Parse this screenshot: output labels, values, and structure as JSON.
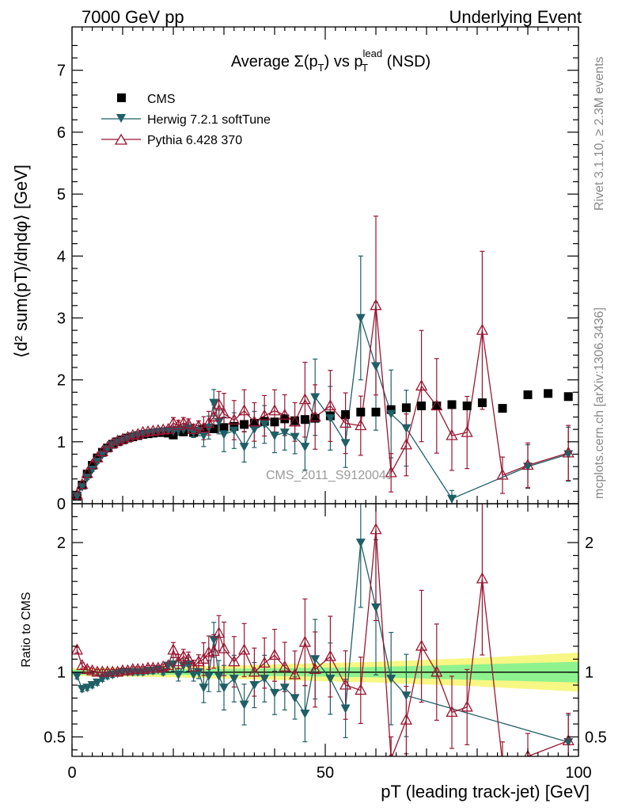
{
  "header": {
    "left": "7000 GeV pp",
    "right": "Underlying Event"
  },
  "plot_title": {
    "part1": "Average ",
    "sigma": "Σ(p",
    "sub_t": "T",
    "part2": ") vs p",
    "sup_lead": "lead",
    "sub_t2": "T",
    "part3": " (NSD)"
  },
  "side_labels": {
    "rivet": "Rivet 3.1.10, ≥ 2.3M events",
    "mcplots": "mcplots.cern.ch [arXiv:1306.3436]"
  },
  "watermark": "CMS_2011_S9120041",
  "colors": {
    "cms": "#000000",
    "herwig": "#1f5f66",
    "pythia": "#9b1530",
    "band_inner": "#8ef28e",
    "band_outer": "#f7f784"
  },
  "chart_data": [
    {
      "type": "scatter",
      "panel": "main",
      "ylabel": "⟨d² sum(pT)/dηdφ⟩ [GeV]",
      "xlim": [
        0,
        100
      ],
      "ylim": [
        0,
        7.7
      ],
      "yticks": [
        0,
        1,
        2,
        3,
        4,
        5,
        6,
        7
      ],
      "legend_position": "top-left",
      "legend": [
        "CMS",
        "Herwig 7.2.1 softTune",
        "Pythia 6.428 370"
      ],
      "series": [
        {
          "name": "CMS",
          "marker": "square",
          "x": [
            1,
            2,
            3,
            4,
            5,
            6,
            7,
            8,
            9,
            10,
            11,
            12,
            13,
            14,
            15,
            16,
            17,
            18,
            19,
            20,
            22,
            24,
            26,
            28,
            30,
            32,
            34,
            36,
            38,
            40,
            42,
            44,
            46,
            48,
            51,
            54,
            57,
            60,
            63,
            66,
            69,
            72,
            75,
            78,
            81,
            85,
            90,
            94,
            98
          ],
          "y": [
            0.12,
            0.3,
            0.48,
            0.62,
            0.74,
            0.83,
            0.9,
            0.96,
            1.0,
            1.03,
            1.06,
            1.08,
            1.1,
            1.12,
            1.13,
            1.14,
            1.15,
            1.15,
            1.14,
            1.11,
            1.16,
            1.15,
            1.2,
            1.21,
            1.23,
            1.25,
            1.28,
            1.3,
            1.33,
            1.32,
            1.37,
            1.34,
            1.36,
            1.38,
            1.42,
            1.44,
            1.48,
            1.48,
            1.52,
            1.55,
            1.58,
            1.58,
            1.6,
            1.58,
            1.63,
            1.54,
            1.76,
            1.78,
            1.73
          ]
        },
        {
          "name": "Herwig 7.2.1 softTune",
          "marker": "triangle-down",
          "x": [
            1,
            2,
            3,
            4,
            5,
            6,
            7,
            8,
            9,
            10,
            11,
            12,
            13,
            14,
            15,
            16,
            17,
            18,
            19,
            20,
            21,
            22,
            23,
            24,
            25,
            26,
            27,
            28,
            29,
            30,
            32,
            34,
            36,
            38,
            40,
            42,
            44,
            46,
            48,
            51,
            54,
            57,
            60,
            63,
            66,
            75,
            90,
            98
          ],
          "y": [
            0.12,
            0.27,
            0.42,
            0.55,
            0.68,
            0.79,
            0.88,
            0.95,
            0.99,
            1.02,
            1.05,
            1.08,
            1.1,
            1.12,
            1.14,
            1.15,
            1.16,
            1.17,
            1.18,
            1.17,
            1.19,
            1.2,
            1.22,
            1.15,
            1.18,
            1.1,
            1.23,
            1.63,
            1.32,
            1.12,
            1.18,
            0.92,
            1.2,
            1.28,
            1.1,
            1.15,
            1.08,
            0.92,
            1.72,
            1.38,
            0.98,
            3.0,
            2.22,
            1.45,
            1.22,
            0.08,
            0.6,
            0.8
          ]
        },
        {
          "name": "Pythia 6.428 370",
          "marker": "triangle-up-open",
          "x": [
            1,
            2,
            3,
            4,
            5,
            6,
            7,
            8,
            9,
            10,
            11,
            12,
            13,
            14,
            15,
            16,
            17,
            18,
            19,
            20,
            21,
            22,
            23,
            24,
            25,
            26,
            27,
            28,
            29,
            30,
            32,
            34,
            36,
            38,
            40,
            42,
            44,
            46,
            48,
            51,
            54,
            57,
            60,
            63,
            66,
            69,
            72,
            75,
            78,
            81,
            85,
            90,
            98
          ],
          "y": [
            0.14,
            0.31,
            0.49,
            0.63,
            0.74,
            0.84,
            0.91,
            0.97,
            1.01,
            1.04,
            1.07,
            1.1,
            1.12,
            1.15,
            1.16,
            1.17,
            1.18,
            1.19,
            1.2,
            1.3,
            1.26,
            1.3,
            1.28,
            1.2,
            1.25,
            1.22,
            1.3,
            1.4,
            1.6,
            1.45,
            1.35,
            1.5,
            1.32,
            1.42,
            1.5,
            1.43,
            1.32,
            1.68,
            1.4,
            1.58,
            1.3,
            1.26,
            3.2,
            0.5,
            0.95,
            1.9,
            1.58,
            1.1,
            1.15,
            2.8,
            0.46,
            0.62,
            0.82
          ]
        }
      ]
    },
    {
      "type": "scatter",
      "panel": "ratio",
      "ylabel": "Ratio to CMS",
      "xlabel": "pT (leading track-jet) [GeV]",
      "xlim": [
        0,
        100
      ],
      "xticks": [
        0,
        50,
        100
      ],
      "ylim": [
        0.35,
        2.3
      ],
      "yticks": [
        0.5,
        1,
        2
      ],
      "band": {
        "x": [
          0,
          20,
          40,
          60,
          80,
          100
        ],
        "inner": [
          0.02,
          0.02,
          0.03,
          0.04,
          0.06,
          0.08
        ],
        "outer": [
          0.03,
          0.04,
          0.06,
          0.08,
          0.11,
          0.15
        ]
      },
      "series": [
        {
          "name": "Herwig 7.2.1 softTune",
          "x": [
            1,
            2,
            3,
            4,
            5,
            6,
            7,
            8,
            9,
            10,
            11,
            12,
            13,
            14,
            15,
            16,
            17,
            18,
            19,
            20,
            21,
            22,
            23,
            24,
            25,
            26,
            27,
            28,
            29,
            30,
            32,
            34,
            36,
            38,
            40,
            42,
            44,
            46,
            48,
            51,
            54,
            57,
            60,
            63,
            66,
            98
          ],
          "y": [
            0.97,
            0.87,
            0.88,
            0.9,
            0.92,
            0.95,
            0.97,
            0.98,
            0.99,
            1.0,
            1.0,
            1.0,
            1.0,
            1.0,
            1.01,
            1.01,
            1.02,
            1.0,
            1.05,
            1.06,
            0.98,
            1.05,
            1.06,
            0.98,
            1.0,
            0.88,
            0.97,
            1.25,
            0.97,
            0.88,
            0.95,
            0.75,
            0.9,
            0.95,
            0.84,
            0.88,
            0.8,
            0.68,
            1.1,
            0.95,
            0.72,
            2.0,
            1.5,
            0.95,
            0.82,
            0.46
          ]
        },
        {
          "name": "Pythia 6.428 370",
          "x": [
            1,
            2,
            3,
            4,
            5,
            6,
            7,
            8,
            9,
            10,
            11,
            12,
            13,
            14,
            15,
            16,
            17,
            18,
            19,
            20,
            21,
            22,
            23,
            24,
            25,
            26,
            27,
            28,
            29,
            30,
            32,
            34,
            36,
            38,
            40,
            42,
            44,
            46,
            48,
            51,
            54,
            57,
            60,
            63,
            66,
            69,
            72,
            75,
            78,
            81,
            85,
            90,
            98
          ],
          "y": [
            1.17,
            1.05,
            1.02,
            1.01,
            1.0,
            1.0,
            1.0,
            1.0,
            1.0,
            1.01,
            1.01,
            1.02,
            1.02,
            1.02,
            1.03,
            1.03,
            1.03,
            1.04,
            1.05,
            1.17,
            1.08,
            1.12,
            1.1,
            1.04,
            1.08,
            1.1,
            1.15,
            1.16,
            1.3,
            1.18,
            1.08,
            1.17,
            1.0,
            1.07,
            1.13,
            1.04,
            0.98,
            1.23,
            1.02,
            1.12,
            0.9,
            0.86,
            2.1,
            0.33,
            0.63,
            1.2,
            1.0,
            0.69,
            0.73,
            1.72,
            0.3,
            0.35,
            0.47
          ]
        }
      ]
    }
  ]
}
